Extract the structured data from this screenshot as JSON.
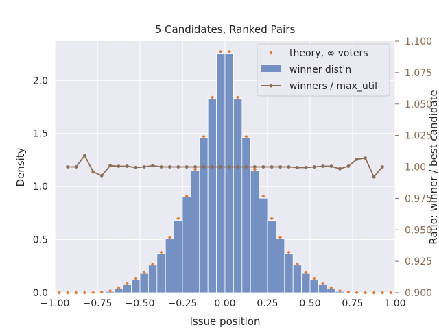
{
  "chart_data": {
    "type": "bar",
    "title": "5 Candidates, Ranked Pairs",
    "xlabel": "Issue position",
    "ylabel": "Density",
    "y2label": "Ratio: winner / best candidate",
    "xlim": [
      -1.0,
      1.0
    ],
    "ylim": [
      0.0,
      2.37
    ],
    "y2lim": [
      0.9,
      1.1
    ],
    "xticks": [
      "−1.00",
      "−0.75",
      "−0.50",
      "−0.25",
      "0.00",
      "0.25",
      "0.50",
      "0.75",
      "1.00"
    ],
    "xtick_values": [
      -1.0,
      -0.75,
      -0.5,
      -0.25,
      0.0,
      0.25,
      0.5,
      0.75,
      1.0
    ],
    "yticks": [
      "0.0",
      "0.5",
      "1.0",
      "1.5",
      "2.0"
    ],
    "ytick_values": [
      0.0,
      0.5,
      1.0,
      1.5,
      2.0
    ],
    "y2ticks": [
      "0.900",
      "0.925",
      "0.950",
      "0.975",
      "1.00",
      "1.025",
      "1.050",
      "1.075",
      "1.100"
    ],
    "y2tick_values": [
      0.9,
      0.925,
      0.95,
      0.975,
      1.0,
      1.025,
      1.05,
      1.075,
      1.1
    ],
    "grid": true,
    "legend_position": "top-right",
    "colors": {
      "background": "#eaeaf2",
      "bars": "#7590c2",
      "theory": "#e07b39",
      "ratio": "#8c6d55",
      "grid": "#ffffff"
    },
    "series": [
      {
        "name": "winner dist'n",
        "type": "bar",
        "bin_width": 0.05,
        "x": [
          -0.975,
          -0.925,
          -0.875,
          -0.825,
          -0.775,
          -0.725,
          -0.675,
          -0.625,
          -0.575,
          -0.525,
          -0.475,
          -0.425,
          -0.375,
          -0.325,
          -0.275,
          -0.225,
          -0.175,
          -0.125,
          -0.075,
          -0.025,
          0.025,
          0.075,
          0.125,
          0.175,
          0.225,
          0.275,
          0.325,
          0.375,
          0.425,
          0.475,
          0.525,
          0.575,
          0.625,
          0.675,
          0.725,
          0.775,
          0.825,
          0.875,
          0.925,
          0.975
        ],
        "values": [
          0.0,
          0.0,
          0.0,
          0.0,
          0.0,
          0.003,
          0.012,
          0.035,
          0.075,
          0.12,
          0.18,
          0.26,
          0.37,
          0.51,
          0.68,
          0.9,
          1.15,
          1.46,
          1.83,
          2.25,
          2.25,
          1.83,
          1.46,
          1.15,
          0.89,
          0.68,
          0.51,
          0.37,
          0.26,
          0.18,
          0.12,
          0.075,
          0.035,
          0.012,
          0.003,
          0.0,
          0.0,
          0.0,
          0.0,
          0.0
        ]
      },
      {
        "name": "theory, ∞ voters",
        "type": "scatter",
        "x": [
          -0.975,
          -0.925,
          -0.875,
          -0.825,
          -0.775,
          -0.725,
          -0.675,
          -0.625,
          -0.575,
          -0.525,
          -0.475,
          -0.425,
          -0.375,
          -0.325,
          -0.275,
          -0.225,
          -0.175,
          -0.125,
          -0.075,
          -0.025,
          0.025,
          0.075,
          0.125,
          0.175,
          0.225,
          0.275,
          0.325,
          0.375,
          0.425,
          0.475,
          0.525,
          0.575,
          0.625,
          0.675,
          0.725,
          0.775,
          0.825,
          0.875,
          0.925,
          0.975
        ],
        "values": [
          0.0,
          0.0,
          0.0,
          0.0,
          0.002,
          0.006,
          0.018,
          0.045,
          0.085,
          0.135,
          0.19,
          0.27,
          0.38,
          0.52,
          0.7,
          0.91,
          1.16,
          1.47,
          1.84,
          2.27,
          2.27,
          1.84,
          1.47,
          1.16,
          0.91,
          0.7,
          0.52,
          0.38,
          0.27,
          0.19,
          0.135,
          0.085,
          0.045,
          0.018,
          0.006,
          0.002,
          0.0,
          0.0,
          0.0,
          0.0
        ]
      },
      {
        "name": "winners / max_util",
        "type": "line",
        "axis": "right",
        "x": [
          -0.925,
          -0.875,
          -0.825,
          -0.775,
          -0.725,
          -0.675,
          -0.625,
          -0.575,
          -0.525,
          -0.475,
          -0.425,
          -0.375,
          -0.325,
          -0.275,
          -0.225,
          -0.175,
          -0.125,
          -0.075,
          -0.025,
          0.025,
          0.075,
          0.125,
          0.175,
          0.225,
          0.275,
          0.325,
          0.375,
          0.425,
          0.475,
          0.525,
          0.575,
          0.625,
          0.675,
          0.725,
          0.775,
          0.825,
          0.875,
          0.925
        ],
        "values": [
          1.0,
          1.0,
          1.009,
          0.996,
          0.993,
          1.001,
          1.0005,
          1.0005,
          0.9995,
          1.0,
          1.001,
          1.0,
          1.0,
          1.0,
          1.0,
          1.0,
          1.0,
          1.0,
          1.0,
          1.0,
          1.0,
          1.0,
          1.0,
          1.0,
          1.0,
          1.0,
          1.0,
          0.9995,
          0.9995,
          1.0,
          1.0005,
          1.0005,
          0.9985,
          1.0005,
          1.006,
          1.007,
          0.992,
          1.0
        ]
      }
    ]
  }
}
